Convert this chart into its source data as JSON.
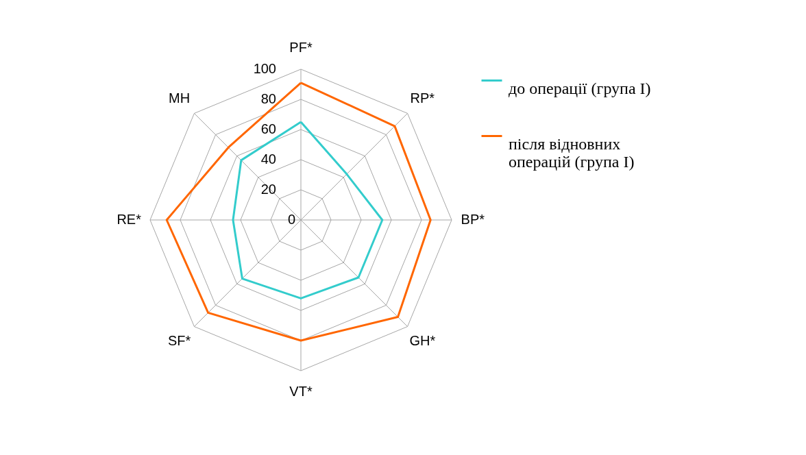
{
  "chart_data": {
    "type": "radar",
    "categories": [
      "PF*",
      "RP*",
      "BP*",
      "GH*",
      "VT*",
      "SF*",
      "RE*",
      "MH"
    ],
    "series": [
      {
        "name": "до операції (група I)",
        "color": "#33cccc",
        "values": [
          65,
          43,
          54,
          54,
          52,
          55,
          45,
          56
        ]
      },
      {
        "name": "після відновних операцій (група I)",
        "color": "#ff6600",
        "values": [
          91,
          88,
          86,
          91,
          80,
          87,
          89,
          68
        ]
      }
    ],
    "ylim": [
      0,
      100
    ],
    "yticks": [
      0,
      20,
      40,
      60,
      80,
      100
    ],
    "grid": true,
    "legend": "right",
    "line_style": "solid",
    "marker": "none"
  }
}
